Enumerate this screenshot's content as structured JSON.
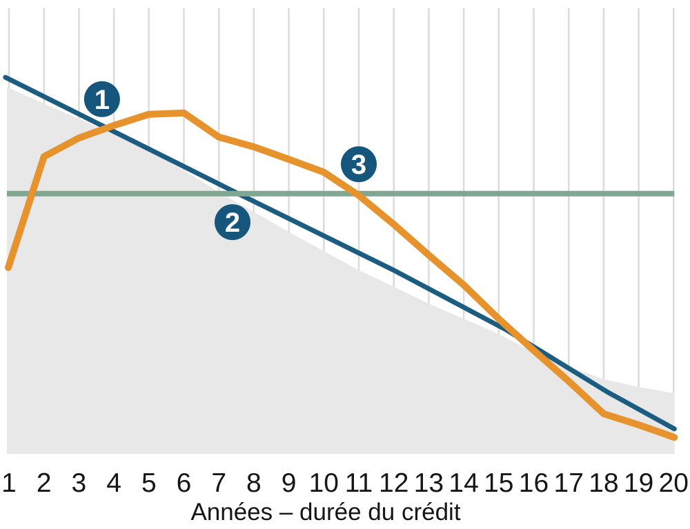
{
  "page": {
    "background": "#ffffff"
  },
  "colors": {
    "blue_line": "#1c5c81",
    "orange_line": "#e6932e",
    "green_line": "#80a791",
    "area": "#e8e8e8",
    "gridline": "#dbdbdb",
    "badge_fill": "#16567d",
    "badge_text": "#ffffff",
    "label_text": "#161616"
  },
  "chart_data": {
    "type": "line",
    "title": "",
    "x_axis": {
      "title": "Années – durée du crédit",
      "ticks": [
        1,
        2,
        3,
        4,
        5,
        6,
        7,
        8,
        9,
        10,
        11,
        12,
        13,
        14,
        15,
        16,
        17,
        18,
        19,
        20
      ]
    },
    "y_axis": {
      "visible": false,
      "range": [
        0,
        100
      ]
    },
    "gridlines": "vertical",
    "legend": "none",
    "series": [
      {
        "id": "remaining-balance-area",
        "type": "area",
        "color_key": "area",
        "points": [
          [
            0.94,
            82.3
          ],
          [
            2,
            78.6
          ],
          [
            3,
            75.2
          ],
          [
            4,
            71.7
          ],
          [
            5,
            68.1
          ],
          [
            6,
            63.6
          ],
          [
            7,
            58.8
          ],
          [
            8,
            54.3
          ],
          [
            9,
            49.8
          ],
          [
            10,
            45.5
          ],
          [
            11,
            41.2
          ],
          [
            12,
            37.5
          ],
          [
            13,
            33.7
          ],
          [
            14,
            30.3
          ],
          [
            15,
            26.9
          ],
          [
            16,
            22.8
          ],
          [
            17,
            19.5
          ],
          [
            18,
            16.8
          ],
          [
            19,
            15.0
          ],
          [
            20.02,
            13.6
          ]
        ]
      },
      {
        "id": "linear-amortization-line",
        "type": "line",
        "color_key": "blue_line",
        "width": 7,
        "points": [
          [
            0.9,
            84.5
          ],
          [
            7.55,
            58.4
          ],
          [
            12.0,
            41.2
          ],
          [
            15.2,
            27.9
          ],
          [
            18.1,
            13.9
          ],
          [
            20.02,
            5.6
          ]
        ]
      },
      {
        "id": "constant-reference-line",
        "type": "line",
        "color_key": "green_line",
        "width": 8,
        "points": [
          [
            0.94,
            58.4
          ],
          [
            20.02,
            58.4
          ]
        ]
      },
      {
        "id": "annuity-curve",
        "type": "line",
        "color_key": "orange_line",
        "width": 10,
        "points": [
          [
            0.98,
            41.8
          ],
          [
            2,
            66.7
          ],
          [
            3,
            70.9
          ],
          [
            4,
            73.7
          ],
          [
            5,
            76.2
          ],
          [
            6,
            76.5
          ],
          [
            7,
            71.1
          ],
          [
            8,
            68.9
          ],
          [
            9,
            66.1
          ],
          [
            10,
            63.2
          ],
          [
            11,
            58.0
          ],
          [
            12,
            51.5
          ],
          [
            13,
            44.6
          ],
          [
            14,
            37.9
          ],
          [
            15,
            30.3
          ],
          [
            16,
            23.2
          ],
          [
            17,
            16.3
          ],
          [
            18,
            9.0
          ],
          [
            19,
            6.5
          ],
          [
            20.02,
            3.7
          ]
        ]
      }
    ],
    "badges": [
      {
        "label": "1",
        "x": 3.66,
        "y": 79.6
      },
      {
        "label": "2",
        "x": 7.39,
        "y": 52.0
      },
      {
        "label": "3",
        "x": 11.0,
        "y": 65.0
      }
    ]
  }
}
